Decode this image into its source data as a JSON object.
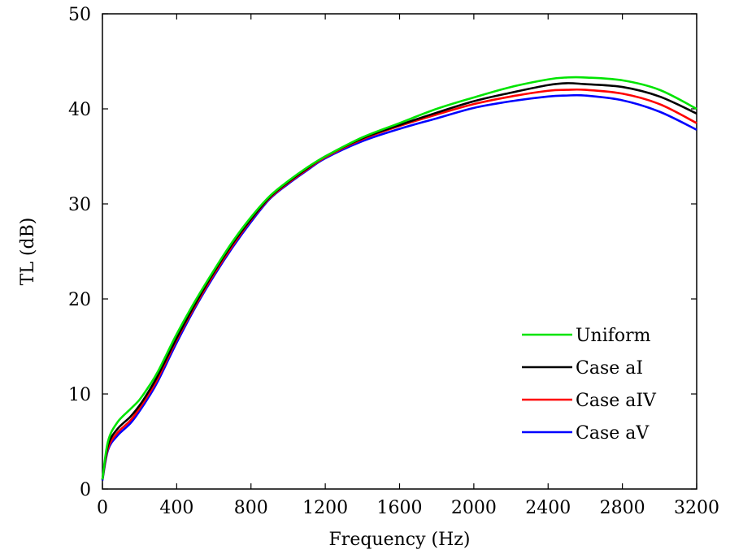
{
  "chart_data": {
    "type": "line",
    "title": "",
    "xlabel": "Frequency (Hz)",
    "ylabel": "TL (dB)",
    "xlim": [
      0,
      3200
    ],
    "ylim": [
      0,
      50
    ],
    "xticks": [
      0,
      400,
      800,
      1200,
      1600,
      2000,
      2400,
      2800,
      3200
    ],
    "yticks": [
      0,
      10,
      20,
      30,
      40,
      50
    ],
    "grid": false,
    "legend_position": "bottom-right",
    "x": [
      0,
      30,
      80,
      150,
      200,
      250,
      300,
      400,
      500,
      600,
      700,
      800,
      900,
      1000,
      1100,
      1200,
      1400,
      1600,
      1800,
      2000,
      2200,
      2400,
      2500,
      2600,
      2800,
      3000,
      3200
    ],
    "series": [
      {
        "name": "Uniform",
        "color": "#00e400",
        "values": [
          1.0,
          5.0,
          7.0,
          8.4,
          9.4,
          10.8,
          12.4,
          16.3,
          19.8,
          23.0,
          26.0,
          28.6,
          30.8,
          32.4,
          33.8,
          35.0,
          37.0,
          38.5,
          40.0,
          41.2,
          42.3,
          43.1,
          43.3,
          43.3,
          43.0,
          42.0,
          40.0
        ]
      },
      {
        "name": "Case aI",
        "color": "#000000",
        "values": [
          1.0,
          4.6,
          6.3,
          7.6,
          8.8,
          10.3,
          12.0,
          15.9,
          19.5,
          22.8,
          25.8,
          28.4,
          30.7,
          32.3,
          33.7,
          35.0,
          36.9,
          38.3,
          39.6,
          40.8,
          41.7,
          42.5,
          42.7,
          42.6,
          42.3,
          41.3,
          39.5
        ]
      },
      {
        "name": "Case aIV",
        "color": "#ff0000",
        "values": [
          1.0,
          4.3,
          5.9,
          7.2,
          8.5,
          10.0,
          11.7,
          15.7,
          19.3,
          22.6,
          25.6,
          28.3,
          30.6,
          32.2,
          33.6,
          34.9,
          36.8,
          38.2,
          39.4,
          40.5,
          41.3,
          41.9,
          42.0,
          42.0,
          41.6,
          40.5,
          38.5
        ]
      },
      {
        "name": "Case aV",
        "color": "#0000ff",
        "values": [
          0.9,
          4.1,
          5.6,
          6.9,
          8.2,
          9.7,
          11.4,
          15.4,
          19.1,
          22.4,
          25.4,
          28.1,
          30.5,
          32.1,
          33.5,
          34.8,
          36.6,
          37.9,
          39.0,
          40.1,
          40.8,
          41.3,
          41.4,
          41.4,
          40.9,
          39.7,
          37.8
        ]
      }
    ]
  }
}
